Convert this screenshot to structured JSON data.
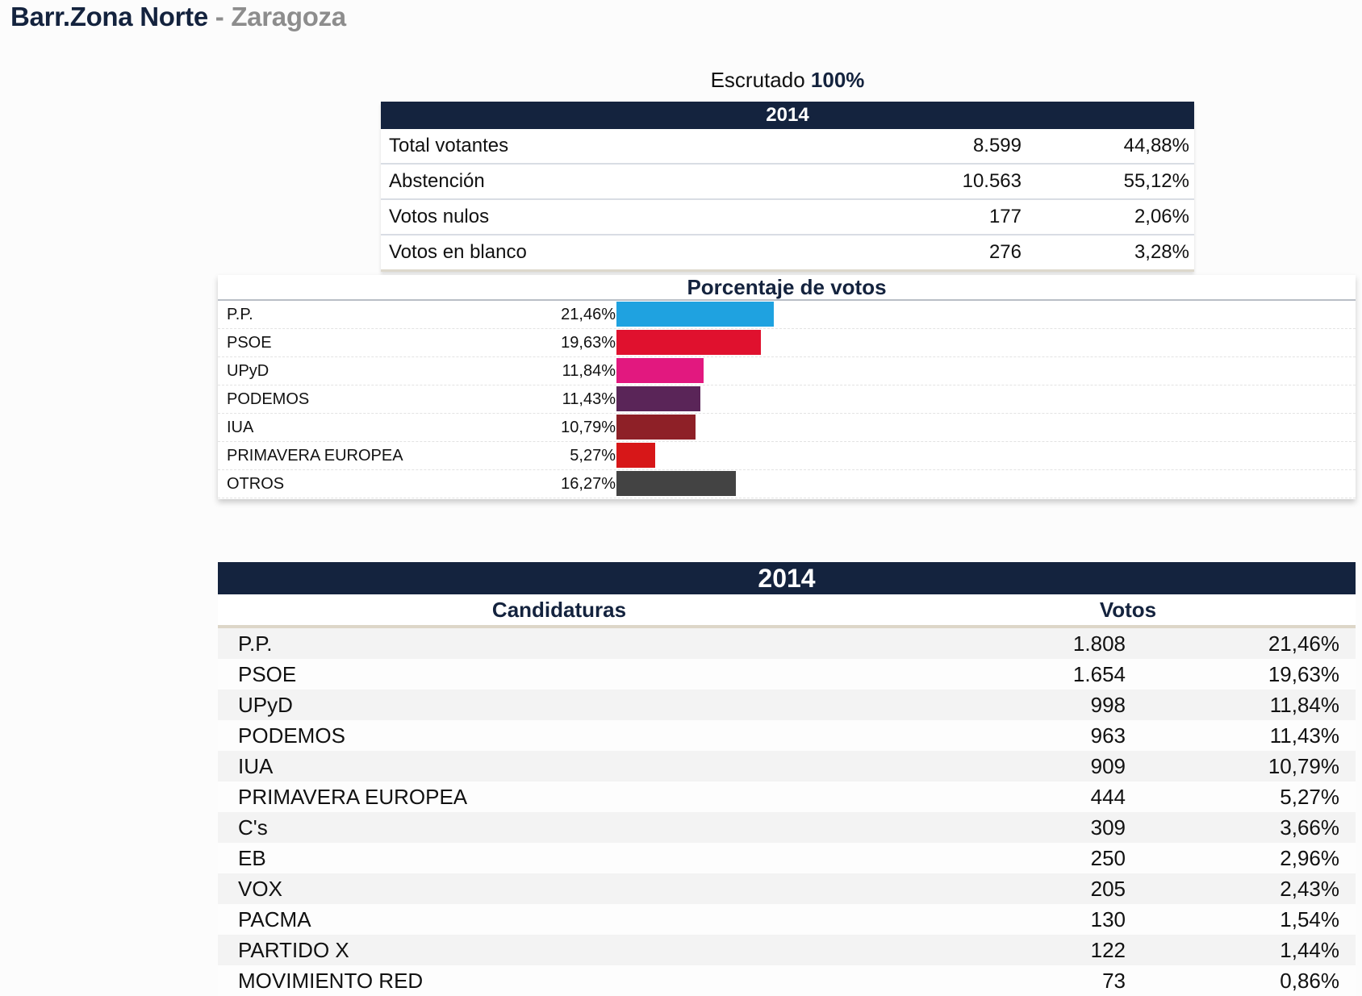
{
  "header": {
    "place": "Barr.Zona Norte",
    "separator": " - ",
    "city": "Zaragoza"
  },
  "escrutado": {
    "label": "Escrutado",
    "value": "100%"
  },
  "summary": {
    "year": "2014",
    "rows": [
      {
        "label": "Total votantes",
        "value": "8.599",
        "percent": "44,88%"
      },
      {
        "label": "Abstención",
        "value": "10.563",
        "percent": "55,12%"
      },
      {
        "label": "Votos nulos",
        "value": "177",
        "percent": "2,06%"
      },
      {
        "label": "Votos en blanco",
        "value": "276",
        "percent": "3,28%"
      }
    ]
  },
  "chart_data": {
    "type": "bar",
    "title": "Porcentaje de votos",
    "categories": [
      "P.P.",
      "PSOE",
      "UPyD",
      "PODEMOS",
      "IUA",
      "PRIMAVERA EUROPEA",
      "OTROS"
    ],
    "labels": [
      "21,46%",
      "19,63%",
      "11,84%",
      "11,43%",
      "10,79%",
      "5,27%",
      "16,27%"
    ],
    "values": [
      21.46,
      19.63,
      11.84,
      11.43,
      10.79,
      5.27,
      16.27
    ],
    "colors": [
      "#1fa2e0",
      "#e0112e",
      "#e2187f",
      "#5a2558",
      "#8e2027",
      "#d71718",
      "#434343"
    ],
    "orientation": "horizontal",
    "legend": "none"
  },
  "results": {
    "year": "2014",
    "col_candidaturas": "Candidaturas",
    "col_votos": "Votos",
    "rows": [
      {
        "name": "P.P.",
        "votes": "1.808",
        "percent": "21,46%"
      },
      {
        "name": "PSOE",
        "votes": "1.654",
        "percent": "19,63%"
      },
      {
        "name": "UPyD",
        "votes": "998",
        "percent": "11,84%"
      },
      {
        "name": "PODEMOS",
        "votes": "963",
        "percent": "11,43%"
      },
      {
        "name": "IUA",
        "votes": "909",
        "percent": "10,79%"
      },
      {
        "name": "PRIMAVERA EUROPEA",
        "votes": "444",
        "percent": "5,27%"
      },
      {
        "name": "C's",
        "votes": "309",
        "percent": "3,66%"
      },
      {
        "name": "EB",
        "votes": "250",
        "percent": "2,96%"
      },
      {
        "name": "VOX",
        "votes": "205",
        "percent": "2,43%"
      },
      {
        "name": "PACMA",
        "votes": "130",
        "percent": "1,54%"
      },
      {
        "name": "PARTIDO X",
        "votes": "122",
        "percent": "1,44%"
      },
      {
        "name": "MOVIMIENTO RED",
        "votes": "73",
        "percent": "0,86%"
      }
    ]
  }
}
